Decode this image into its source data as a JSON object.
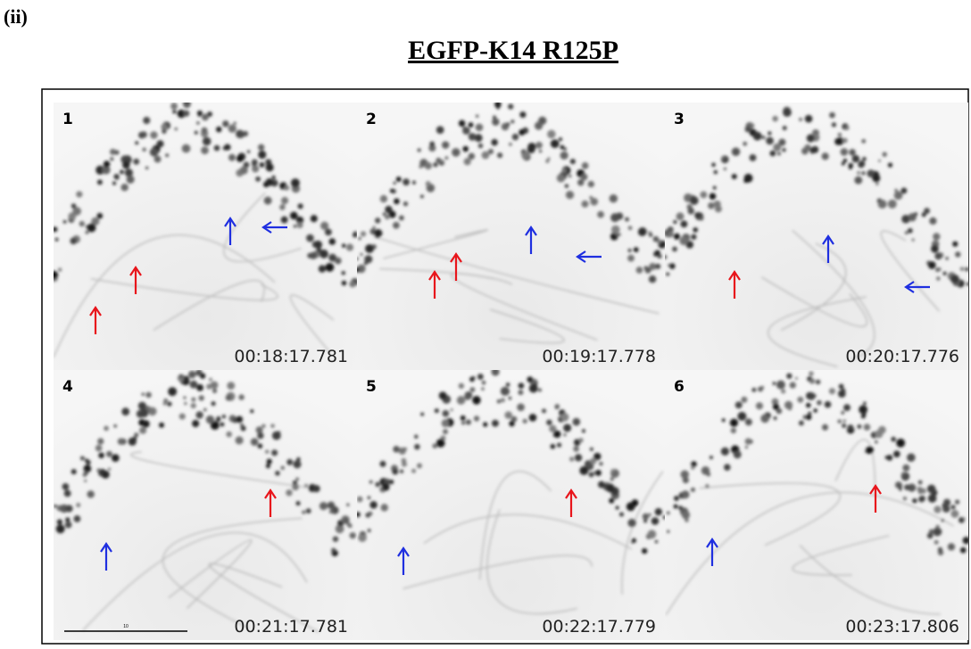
{
  "label": "(ii)",
  "title": "EGFP-K14 R125P",
  "panels": [
    {
      "number": "1",
      "timestamp": "00:18:17.781"
    },
    {
      "number": "2",
      "timestamp": "00:19:17.778"
    },
    {
      "number": "3",
      "timestamp": "00:20:17.776"
    },
    {
      "number": "4",
      "timestamp": "00:21:17.781"
    },
    {
      "number": "5",
      "timestamp": "00:22:17.779"
    },
    {
      "number": "6",
      "timestamp": "00:23:17.806"
    }
  ],
  "scale_bar_label": "10"
}
